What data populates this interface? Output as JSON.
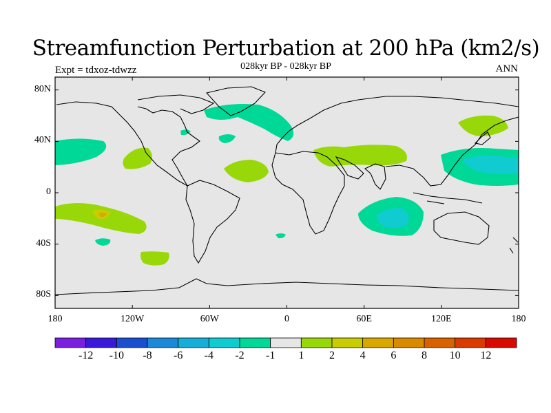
{
  "title": "Streamfunction Perturbation at 200 hPa (km2/s)",
  "subtitle": "028kyr BP - 028kyr BP",
  "experiment": "Expt = tdxoz-tdwzz",
  "season": "ANN",
  "map": {
    "projection": "cylindrical equidistant",
    "background_color": "#e6e6e6",
    "coastline_color": "#000000",
    "lat_ticks": [
      {
        "value": 80,
        "label": "80N"
      },
      {
        "value": 40,
        "label": "40N"
      },
      {
        "value": 0,
        "label": "0"
      },
      {
        "value": -40,
        "label": "40S"
      },
      {
        "value": -80,
        "label": "80S"
      }
    ],
    "lon_ticks": [
      {
        "value": -180,
        "label": "180"
      },
      {
        "value": -120,
        "label": "120W"
      },
      {
        "value": -60,
        "label": "60W"
      },
      {
        "value": 0,
        "label": "0"
      },
      {
        "value": 60,
        "label": "60E"
      },
      {
        "value": 120,
        "label": "120E"
      },
      {
        "value": 180,
        "label": "180"
      }
    ]
  },
  "colorbar": {
    "colors": [
      "#7a1fe0",
      "#3a1ad8",
      "#1a4fd0",
      "#1a8ad8",
      "#14aed6",
      "#10ccd0",
      "#00d898",
      "#e6e6e6",
      "#99d808",
      "#c8cc00",
      "#d8a800",
      "#d88a00",
      "#d86200",
      "#d83a00",
      "#d80a00"
    ],
    "labels": [
      "-12",
      "-10",
      "-8",
      "-6",
      "-4",
      "-2",
      "-1",
      "1",
      "2",
      "4",
      "6",
      "8",
      "10",
      "12"
    ]
  }
}
